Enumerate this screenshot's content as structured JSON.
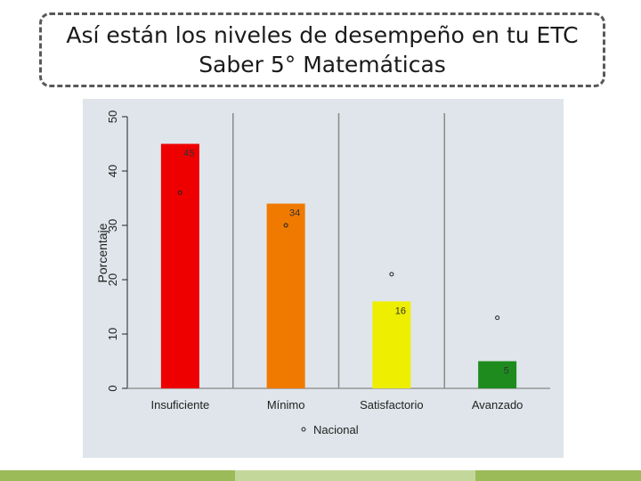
{
  "slide": {
    "title": "Así están los niveles de desempeño en tu ETC\nSaber 5° Matemáticas"
  },
  "chart_data": {
    "type": "bar",
    "title": "",
    "xlabel": "",
    "ylabel": "Porcentaje",
    "ylim": [
      0,
      50
    ],
    "yticks": [
      "0",
      "10",
      "20",
      "30",
      "40",
      "50"
    ],
    "categories": [
      "Insuficiente",
      "Mínimo",
      "Satisfactorio",
      "Avanzado"
    ],
    "values": [
      45,
      34,
      16,
      5
    ],
    "data_labels": [
      "45",
      "34",
      "16",
      "5"
    ],
    "bar_colors": [
      "#ee0000",
      "#f07a00",
      "#eeee00",
      "#1e8b1e"
    ],
    "series": [
      {
        "name": "Nacional",
        "values": [
          36,
          30,
          21,
          13
        ],
        "marker": "open-circle"
      }
    ],
    "legend": {
      "entries": [
        "Nacional"
      ],
      "placement": "bottom"
    },
    "grid": "vertical separators between categories",
    "background": "#dfe5ea"
  }
}
